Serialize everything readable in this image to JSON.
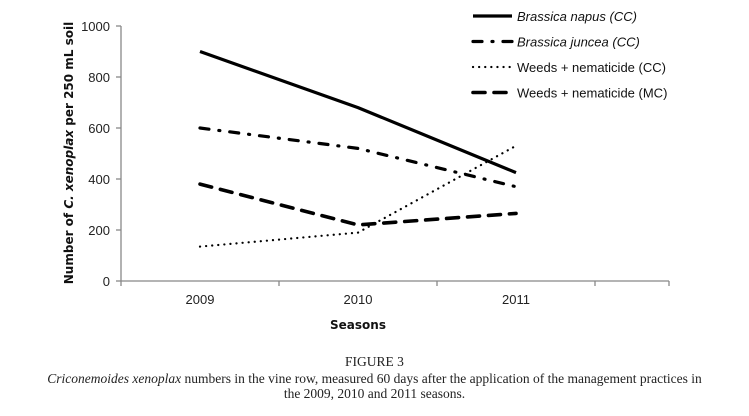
{
  "chart_data": {
    "type": "line",
    "title": "",
    "xlabel": "Seasons",
    "ylabel_parts": [
      "Number of ",
      "C. xenoplax",
      "  per 250 mL soil"
    ],
    "ylabel": "Number of C. xenoplax  per 250 mL soil",
    "categories": [
      "2009",
      "2010",
      "2011"
    ],
    "ylim": [
      0,
      1000
    ],
    "yticks": [
      0,
      200,
      400,
      600,
      800,
      1000
    ],
    "grid": false,
    "legend_position": "top-right",
    "series": [
      {
        "name": "Brassica napus (CC)",
        "italic": "Brassica napus",
        "suffix": " (CC)",
        "style": "solid",
        "values": [
          900,
          680,
          425
        ]
      },
      {
        "name": "Brassica juncea (CC)",
        "italic": "Brassica juncea",
        "suffix": " (CC)",
        "style": "dash-dot",
        "values": [
          600,
          520,
          370
        ]
      },
      {
        "name": "Weeds + nematicide (CC)",
        "italic": "",
        "suffix": "Weeds + nematicide (CC)",
        "style": "dotted",
        "values": [
          135,
          190,
          530
        ]
      },
      {
        "name": "Weeds + nematicide (MC)",
        "italic": "",
        "suffix": "Weeds + nematicide (MC)",
        "style": "dashed",
        "values": [
          380,
          220,
          265
        ]
      }
    ]
  },
  "caption": {
    "figure_label": "FIGURE 3",
    "species_italic": "Criconemoides xenoplax",
    "line1_rest": " numbers in the vine row, measured 60 days after the application of the management practices in",
    "line2": "the 2009, 2010 and 2011 seasons."
  }
}
